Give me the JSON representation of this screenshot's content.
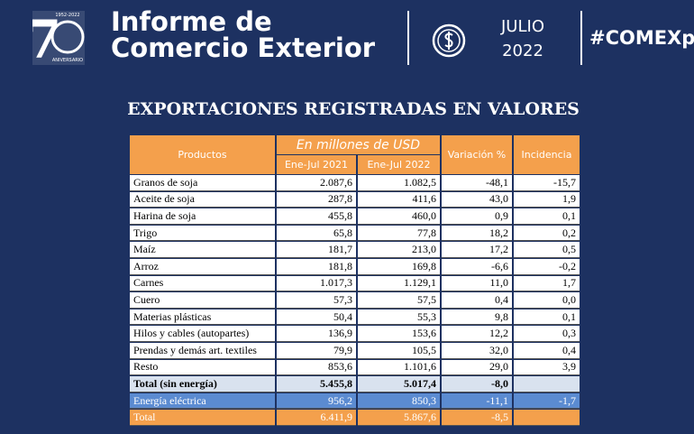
{
  "header": {
    "logo_number": "7",
    "logo_years": "1952-2022",
    "logo_caption": "ANIVERSARIO",
    "title_line1": "Informe de",
    "title_line2": "Comercio Exterior",
    "month": "JULIO",
    "year": "2022",
    "hashtag": "#COMEXpy"
  },
  "table": {
    "title": "EXPORTACIONES REGISTRADAS EN VALORES",
    "header_products": "Productos",
    "header_unit": "En millones de USD",
    "header_col1": "Ene-Jul 2021",
    "header_col2": "Ene-Jul 2022",
    "header_variation": "Variación %",
    "header_incidence": "Incidencia",
    "rows": [
      [
        "Granos de soja",
        "2.087,6",
        "1.082,5",
        "-48,1",
        "-15,7"
      ],
      [
        "Aceite de soja",
        "287,8",
        "411,6",
        "43,0",
        "1,9"
      ],
      [
        "Harina de soja",
        "455,8",
        "460,0",
        "0,9",
        "0,1"
      ],
      [
        "Trigo",
        "65,8",
        "77,8",
        "18,2",
        "0,2"
      ],
      [
        "Maíz",
        "181,7",
        "213,0",
        "17,2",
        "0,5"
      ],
      [
        "Arroz",
        "181,8",
        "169,8",
        "-6,6",
        "-0,2"
      ],
      [
        "Carnes",
        "1.017,3",
        "1.129,1",
        "11,0",
        "1,7"
      ],
      [
        "Cuero",
        "57,3",
        "57,5",
        "0,4",
        "0,0"
      ],
      [
        "Materias plásticas",
        "50,4",
        "55,3",
        "9,8",
        "0,1"
      ],
      [
        "Hilos y cables (autopartes)",
        "136,9",
        "153,6",
        "12,2",
        "0,3"
      ],
      [
        "Prendas y demás art. textiles",
        "79,9",
        "105,5",
        "32,0",
        "0,4"
      ],
      [
        "Resto",
        "853,6",
        "1.101,6",
        "29,0",
        "3,9"
      ],
      [
        "Total (sin energía)",
        "5.455,8",
        "5.017,4",
        "-8,0",
        null
      ],
      [
        "Energía eléctrica",
        "956,2",
        "850,3",
        "-11,1",
        "-1,7"
      ],
      [
        "Total",
        "6.411,9",
        "5.867,6",
        "-8,5",
        null
      ]
    ]
  }
}
